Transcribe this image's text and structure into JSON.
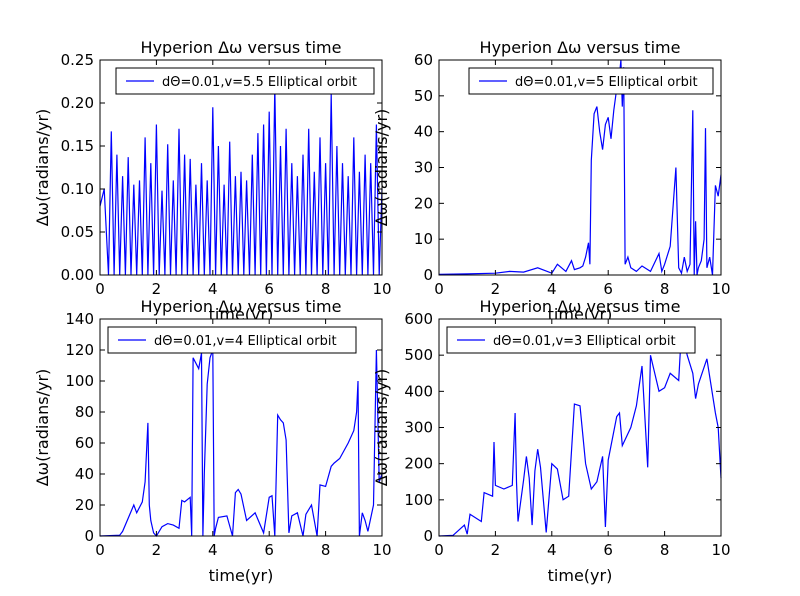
{
  "chart_data": [
    {
      "type": "line",
      "title": "Hyperion  Δω versus time",
      "xlabel": "time(yr)",
      "ylabel": "Δω(radians/yr)",
      "xlim": [
        0,
        10
      ],
      "ylim": [
        0,
        0.25
      ],
      "xticks": [
        "0",
        "2",
        "4",
        "6",
        "8",
        "10"
      ],
      "yticks": [
        "0.00",
        "0.05",
        "0.10",
        "0.15",
        "0.20",
        "0.25"
      ],
      "grid": false,
      "legend_position": "top-right",
      "series": [
        {
          "name": "dΘ=0.01,v=5.5 Elliptical orbit",
          "color": "#0000ff",
          "x": [
            0.0,
            0.15,
            0.3,
            0.4,
            0.5,
            0.6,
            0.7,
            0.8,
            0.9,
            1.0,
            1.1,
            1.2,
            1.3,
            1.4,
            1.5,
            1.6,
            1.7,
            1.8,
            1.9,
            2.0,
            2.1,
            2.2,
            2.3,
            2.4,
            2.5,
            2.6,
            2.7,
            2.8,
            2.9,
            3.0,
            3.1,
            3.2,
            3.3,
            3.4,
            3.5,
            3.6,
            3.7,
            3.8,
            3.9,
            4.0,
            4.1,
            4.2,
            4.3,
            4.4,
            4.5,
            4.6,
            4.7,
            4.8,
            4.9,
            5.0,
            5.1,
            5.2,
            5.3,
            5.4,
            5.5,
            5.6,
            5.7,
            5.8,
            5.9,
            6.0,
            6.1,
            6.2,
            6.3,
            6.4,
            6.5,
            6.6,
            6.7,
            6.8,
            6.9,
            7.0,
            7.1,
            7.2,
            7.3,
            7.4,
            7.5,
            7.6,
            7.7,
            7.8,
            7.9,
            8.0,
            8.1,
            8.2,
            8.3,
            8.4,
            8.5,
            8.6,
            8.7,
            8.8,
            8.9,
            9.0,
            9.1,
            9.2,
            9.3,
            9.4,
            9.5,
            9.6,
            9.7,
            9.8,
            9.9,
            10.0
          ],
          "values": [
            0.08,
            0.1,
            0.0,
            0.167,
            0.0,
            0.14,
            0.0,
            0.115,
            0.0,
            0.137,
            0.0,
            0.105,
            0.0,
            0.11,
            0.0,
            0.16,
            0.0,
            0.13,
            0.0,
            0.175,
            0.0,
            0.098,
            0.0,
            0.152,
            0.0,
            0.11,
            0.0,
            0.17,
            0.0,
            0.14,
            0.0,
            0.135,
            0.0,
            0.105,
            0.0,
            0.13,
            0.0,
            0.11,
            0.0,
            0.195,
            0.0,
            0.15,
            0.0,
            0.105,
            0.0,
            0.155,
            0.0,
            0.115,
            0.0,
            0.12,
            0.0,
            0.11,
            0.0,
            0.14,
            0.0,
            0.165,
            0.0,
            0.175,
            0.0,
            0.19,
            0.0,
            0.22,
            0.0,
            0.15,
            0.0,
            0.17,
            0.0,
            0.13,
            0.0,
            0.115,
            0.0,
            0.14,
            0.0,
            0.17,
            0.0,
            0.12,
            0.0,
            0.16,
            0.0,
            0.13,
            0.0,
            0.21,
            0.0,
            0.15,
            0.0,
            0.13,
            0.0,
            0.115,
            0.0,
            0.16,
            0.0,
            0.12,
            0.0,
            0.14,
            0.0,
            0.13,
            0.0,
            0.175,
            0.0,
            0.1
          ]
        }
      ]
    },
    {
      "type": "line",
      "title": "Hyperion  Δω versus time",
      "xlabel": "time(yr)",
      "ylabel": "Δω(radians/yr)",
      "xlim": [
        0,
        10
      ],
      "ylim": [
        0,
        60
      ],
      "xticks": [
        "0",
        "2",
        "4",
        "6",
        "8",
        "10"
      ],
      "yticks": [
        "0",
        "10",
        "20",
        "30",
        "40",
        "50",
        "60"
      ],
      "grid": false,
      "legend_position": "top-right",
      "series": [
        {
          "name": "dΘ=0.01,v=5 Elliptical orbit",
          "color": "#0000ff",
          "x": [
            0.0,
            1.0,
            2.0,
            2.5,
            3.0,
            3.5,
            4.0,
            4.2,
            4.5,
            4.7,
            4.8,
            5.0,
            5.1,
            5.2,
            5.3,
            5.35,
            5.4,
            5.5,
            5.6,
            5.7,
            5.8,
            5.9,
            6.0,
            6.1,
            6.2,
            6.3,
            6.4,
            6.45,
            6.5,
            6.55,
            6.6,
            6.7,
            6.8,
            7.0,
            7.2,
            7.5,
            7.8,
            7.9,
            8.0,
            8.2,
            8.4,
            8.5,
            8.6,
            8.7,
            8.8,
            8.9,
            9.0,
            9.05,
            9.1,
            9.15,
            9.2,
            9.3,
            9.4,
            9.45,
            9.5,
            9.6,
            9.7,
            9.8,
            9.9,
            10.0
          ],
          "values": [
            0.2,
            0.3,
            0.5,
            1.0,
            0.8,
            2.0,
            0.5,
            3.0,
            1.0,
            4.0,
            1.5,
            2.0,
            2.5,
            5.0,
            9.0,
            3.0,
            32.0,
            45.0,
            47.0,
            40.0,
            35.0,
            42.0,
            44.0,
            38.0,
            46.0,
            52.0,
            56.0,
            60.0,
            47.0,
            58.0,
            3.0,
            5.0,
            2.0,
            1.0,
            2.5,
            1.0,
            6.0,
            1.0,
            3.0,
            8.0,
            30.0,
            2.0,
            0.5,
            5.0,
            1.0,
            3.0,
            46.0,
            0.0,
            15.0,
            0.0,
            2.0,
            4.0,
            10.0,
            41.0,
            2.0,
            5.0,
            0.0,
            25.0,
            22.0,
            28.0
          ]
        }
      ]
    },
    {
      "type": "line",
      "title": "Hyperion  Δω versus time",
      "xlabel": "time(yr)",
      "ylabel": "Δω(radians/yr)",
      "xlim": [
        0,
        10
      ],
      "ylim": [
        0,
        140
      ],
      "xticks": [
        "0",
        "2",
        "4",
        "6",
        "8",
        "10"
      ],
      "yticks": [
        "0",
        "20",
        "40",
        "60",
        "80",
        "100",
        "120",
        "140"
      ],
      "grid": false,
      "legend_position": "top-left",
      "series": [
        {
          "name": "dΘ=0.01,v=4 Elliptical orbit",
          "color": "#0000ff",
          "x": [
            0.0,
            0.7,
            0.8,
            1.2,
            1.3,
            1.5,
            1.6,
            1.7,
            1.75,
            1.8,
            1.9,
            2.0,
            2.2,
            2.4,
            2.6,
            2.8,
            2.9,
            3.0,
            3.2,
            3.25,
            3.3,
            3.5,
            3.6,
            3.65,
            3.7,
            3.8,
            3.9,
            4.0,
            4.05,
            4.1,
            4.2,
            4.5,
            4.7,
            4.8,
            4.9,
            5.0,
            5.2,
            5.5,
            5.8,
            6.0,
            6.1,
            6.2,
            6.3,
            6.4,
            6.5,
            6.6,
            6.7,
            6.8,
            7.0,
            7.2,
            7.3,
            7.5,
            7.7,
            7.8,
            8.0,
            8.2,
            8.3,
            8.5,
            8.8,
            9.0,
            9.1,
            9.15,
            9.2,
            9.3,
            9.4,
            9.5,
            9.7,
            9.8,
            9.9,
            10.0
          ],
          "values": [
            0.0,
            0.5,
            3.0,
            20.0,
            15.0,
            22.0,
            35.0,
            73.0,
            20.0,
            10.0,
            2.0,
            0.0,
            6.0,
            8.0,
            7.0,
            5.0,
            23.0,
            22.0,
            25.0,
            0.0,
            115.0,
            108.0,
            118.0,
            0.0,
            40.0,
            98.0,
            115.0,
            120.0,
            0.0,
            5.0,
            12.0,
            13.0,
            0.0,
            28.0,
            30.0,
            27.0,
            10.0,
            15.0,
            2.0,
            25.0,
            26.0,
            0.0,
            78.0,
            75.0,
            73.0,
            62.0,
            2.0,
            13.0,
            15.0,
            0.0,
            14.0,
            20.0,
            0.0,
            33.0,
            32.0,
            45.0,
            47.0,
            50.0,
            60.0,
            68.0,
            80.0,
            100.0,
            0.0,
            15.0,
            10.0,
            3.0,
            20.0,
            120.0,
            35.0,
            40.0
          ]
        }
      ]
    },
    {
      "type": "line",
      "title": "Hyperion  Δω versus time",
      "xlabel": "time(yr)",
      "ylabel": "Δω(radians/yr)",
      "xlim": [
        0,
        10
      ],
      "ylim": [
        0,
        600
      ],
      "xticks": [
        "0",
        "2",
        "4",
        "6",
        "8",
        "10"
      ],
      "yticks": [
        "0",
        "100",
        "200",
        "300",
        "400",
        "500",
        "600"
      ],
      "grid": false,
      "legend_position": "top-left",
      "series": [
        {
          "name": "dΘ=0.01,v=3 Elliptical orbit",
          "color": "#0000ff",
          "x": [
            0.0,
            0.5,
            0.9,
            1.0,
            1.1,
            1.5,
            1.6,
            1.9,
            1.95,
            2.0,
            2.3,
            2.6,
            2.7,
            2.75,
            2.8,
            3.0,
            3.1,
            3.2,
            3.3,
            3.4,
            3.5,
            3.6,
            3.8,
            4.0,
            4.2,
            4.4,
            4.6,
            4.8,
            5.0,
            5.2,
            5.4,
            5.6,
            5.8,
            5.9,
            6.0,
            6.3,
            6.4,
            6.5,
            6.8,
            7.0,
            7.2,
            7.4,
            7.5,
            7.8,
            8.0,
            8.2,
            8.5,
            8.6,
            8.8,
            9.0,
            9.1,
            9.2,
            9.5,
            9.8,
            9.9,
            10.0
          ],
          "values": [
            0.0,
            2.0,
            30.0,
            5.0,
            60.0,
            40.0,
            120.0,
            110.0,
            260.0,
            140.0,
            130.0,
            140.0,
            340.0,
            150.0,
            40.0,
            155.0,
            220.0,
            160.0,
            30.0,
            180.0,
            240.0,
            190.0,
            10.0,
            200.0,
            185.0,
            100.0,
            110.0,
            365.0,
            360.0,
            200.0,
            130.0,
            150.0,
            220.0,
            25.0,
            210.0,
            330.0,
            340.0,
            250.0,
            300.0,
            360.0,
            470.0,
            190.0,
            500.0,
            400.0,
            410.0,
            450.0,
            430.0,
            570.0,
            500.0,
            450.0,
            380.0,
            420.0,
            490.0,
            340.0,
            300.0,
            160.0
          ]
        }
      ]
    }
  ]
}
